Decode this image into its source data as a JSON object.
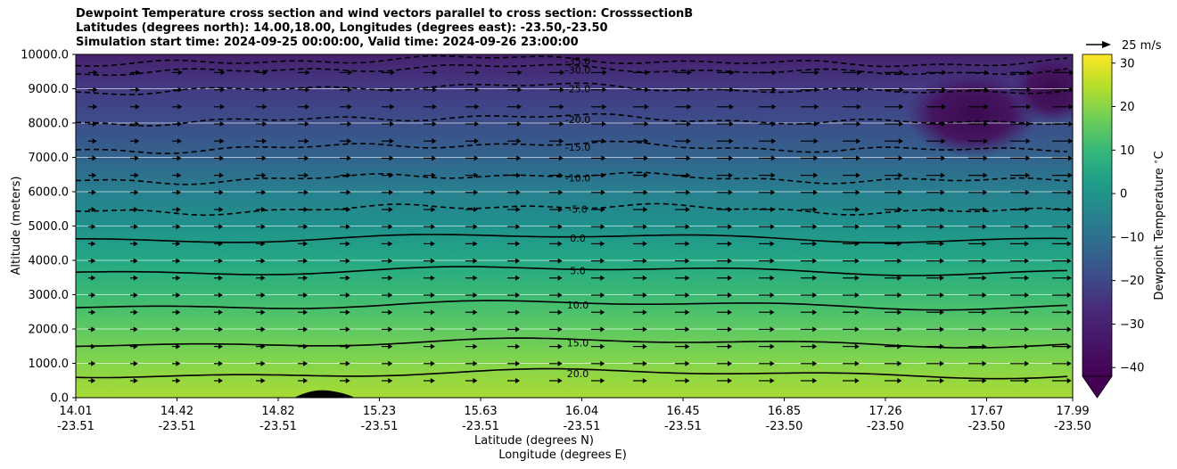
{
  "title_lines": [
    "Dewpoint Temperature cross section and wind vectors parallel to cross section: CrosssectionB",
    "Latitudes (degrees north): 14.00,18.00, Longitudes (degrees east): -23.50,-23.50",
    "Simulation start time: 2024-09-25 00:00:00, Valid time: 2024-09-26 23:00:00"
  ],
  "chart_data": {
    "type": "heatmap",
    "title": "Dewpoint Temperature cross section and wind vectors parallel to cross section: CrosssectionB",
    "xlabel": "Latitude (degrees N)",
    "xlabel2": "Longitude (degrees E)",
    "ylabel": "Altitude (meters)",
    "colorbar_label": "Dewpoint Temperature $^\\circ$C",
    "colorbar_range": [
      -42,
      32
    ],
    "colorbar_ticks": [
      "30",
      "20",
      "10",
      "0",
      "−10",
      "−20",
      "−30",
      "−40"
    ],
    "colormap": "viridis",
    "ylim": [
      0,
      10000
    ],
    "y_ticks": [
      "10000.0",
      "9000.0",
      "8000.0",
      "7000.0",
      "6000.0",
      "5000.0",
      "4000.0",
      "3000.0",
      "2000.0",
      "1000.0",
      "0.0"
    ],
    "x_ticks": [
      {
        "lat": "14.01",
        "lon": "-23.51"
      },
      {
        "lat": "14.42",
        "lon": "-23.51"
      },
      {
        "lat": "14.82",
        "lon": "-23.51"
      },
      {
        "lat": "15.23",
        "lon": "-23.51"
      },
      {
        "lat": "15.63",
        "lon": "-23.51"
      },
      {
        "lat": "16.04",
        "lon": "-23.51"
      },
      {
        "lat": "16.45",
        "lon": "-23.51"
      },
      {
        "lat": "16.85",
        "lon": "-23.50"
      },
      {
        "lat": "17.26",
        "lon": "-23.50"
      },
      {
        "lat": "17.67",
        "lon": "-23.50"
      },
      {
        "lat": "17.99",
        "lon": "-23.50"
      }
    ],
    "contour_labels": [
      {
        "text": "0.0",
        "level": 0
      },
      {
        "text": "5.0",
        "level": 5
      },
      {
        "text": "10.0",
        "level": 10
      },
      {
        "text": "15.0",
        "level": 15
      },
      {
        "text": "20.0",
        "level": 20
      },
      {
        "text": "-5.0",
        "level": -5
      },
      {
        "text": "-10.0",
        "level": -10
      },
      {
        "text": "-15.0",
        "level": -15
      },
      {
        "text": "-20.0",
        "level": -20
      },
      {
        "text": "-25.0",
        "level": -25
      },
      {
        "text": "-30.0",
        "level": -30
      },
      {
        "text": "-35.0",
        "level": -35
      }
    ],
    "contour_levels_approx_altitude": [
      {
        "level": 20,
        "altitude": 700
      },
      {
        "level": 15,
        "altitude": 1600
      },
      {
        "level": 10,
        "altitude": 2700
      },
      {
        "level": 5,
        "altitude": 3700
      },
      {
        "level": 0,
        "altitude": 4650
      },
      {
        "level": -5,
        "altitude": 5500
      },
      {
        "level": -10,
        "altitude": 6400
      },
      {
        "level": -15,
        "altitude": 7300
      },
      {
        "level": -20,
        "altitude": 8100
      },
      {
        "level": -25,
        "altitude": 9000
      },
      {
        "level": -30,
        "altitude": 9550
      },
      {
        "level": -35,
        "altitude": 9800
      }
    ],
    "quiver_key": "25 m/s",
    "grid": "horizontal"
  }
}
